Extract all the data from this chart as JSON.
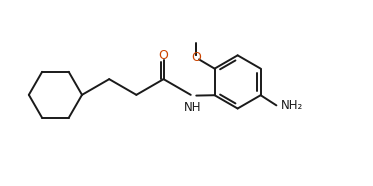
{
  "background_color": "#ffffff",
  "line_color": "#1a1a1a",
  "line_width": 1.4,
  "O_color": "#cc4400",
  "N_color": "#1a1a1a",
  "NH2_color": "#1a1a1a",
  "figsize": [
    3.73,
    1.86
  ],
  "dpi": 100,
  "xlim": [
    0,
    10
  ],
  "ylim": [
    0,
    5
  ]
}
